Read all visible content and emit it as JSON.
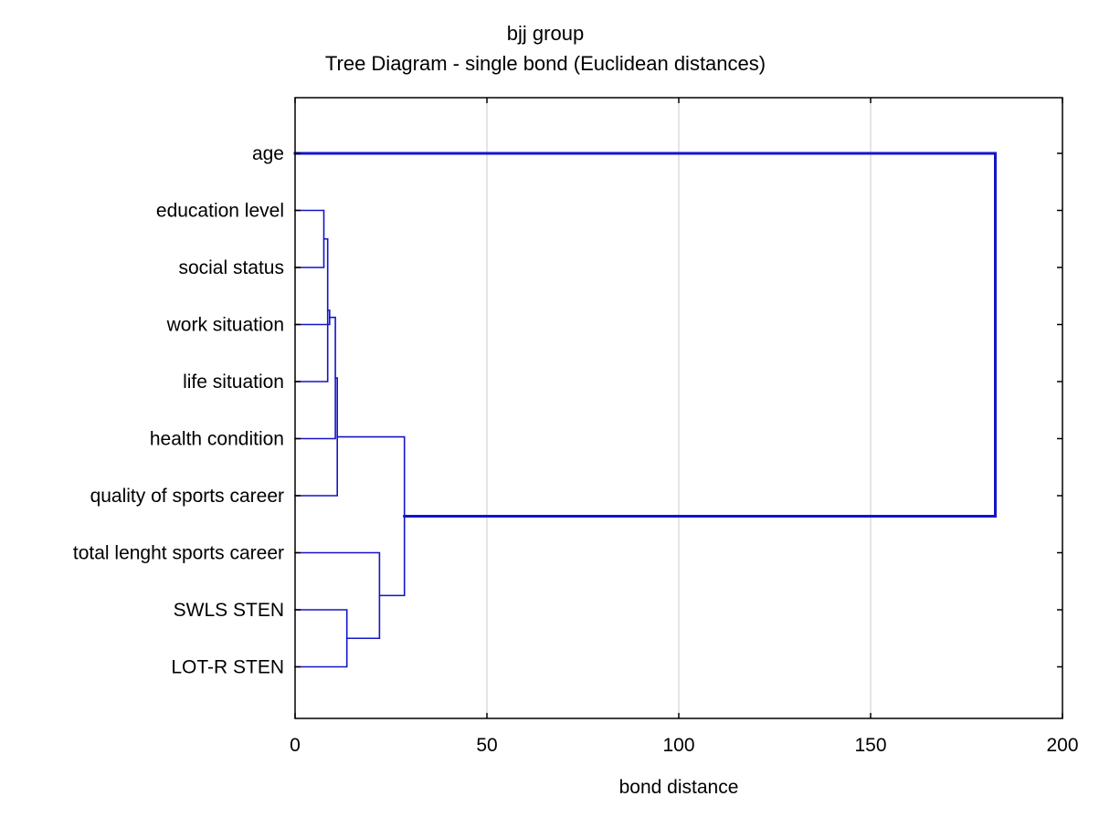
{
  "chart_data": {
    "type": "dendrogram",
    "title": "bjj group",
    "subtitle": "Tree Diagram - single bond (Euclidean distances)",
    "xlabel": "bond distance",
    "xlim": [
      0,
      200
    ],
    "xticks": [
      0,
      50,
      100,
      150,
      200
    ],
    "grid": true,
    "line_color": "#1414c8",
    "leaves": [
      "age",
      "education level",
      "social status",
      "work situation",
      "life situation",
      "health condition",
      "quality of sports career",
      "total lenght sports career",
      "SWLS STEN",
      "LOT-R STEN"
    ],
    "merges": [
      {
        "a": "L1",
        "b": "L2",
        "height": 7.5
      },
      {
        "a": "L4",
        "b": "M1",
        "height": 8.5
      },
      {
        "a": "L3",
        "b": "M2",
        "height": 9.0
      },
      {
        "a": "L5",
        "b": "M3",
        "height": 10.5
      },
      {
        "a": "L6",
        "b": "M4",
        "height": 11.0
      },
      {
        "a": "L8",
        "b": "L9",
        "height": 13.5
      },
      {
        "a": "L7",
        "b": "M6",
        "height": 22.0
      },
      {
        "a": "M5",
        "b": "M7",
        "height": 28.5
      },
      {
        "a": "L0",
        "b": "M8",
        "height": 182.5
      }
    ]
  }
}
